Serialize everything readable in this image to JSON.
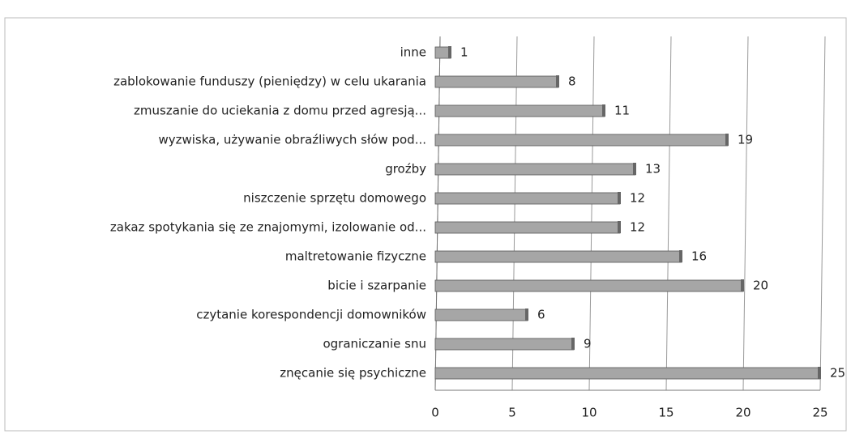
{
  "chart_data": {
    "type": "bar",
    "orientation": "horizontal",
    "categories": [
      "inne",
      "zablokowanie funduszy (pieniędzy) w celu ukarania",
      "zmuszanie do uciekania z domu przed agresją...",
      "wyzwiska, używanie obraźliwych słów pod...",
      "groźby",
      "niszczenie sprzętu domowego",
      "zakaz spotykania się ze znajomymi, izolowanie od...",
      "maltretowanie fizyczne",
      "bicie i szarpanie",
      "czytanie korespondencji domowników",
      "ograniczanie snu",
      "znęcanie się psychiczne"
    ],
    "values": [
      1,
      8,
      11,
      19,
      13,
      12,
      12,
      16,
      20,
      6,
      9,
      25
    ],
    "color": "#a6a6a6",
    "xlim": [
      0,
      25
    ],
    "xticks": [
      0,
      5,
      10,
      15,
      20,
      25
    ],
    "grid": true
  }
}
